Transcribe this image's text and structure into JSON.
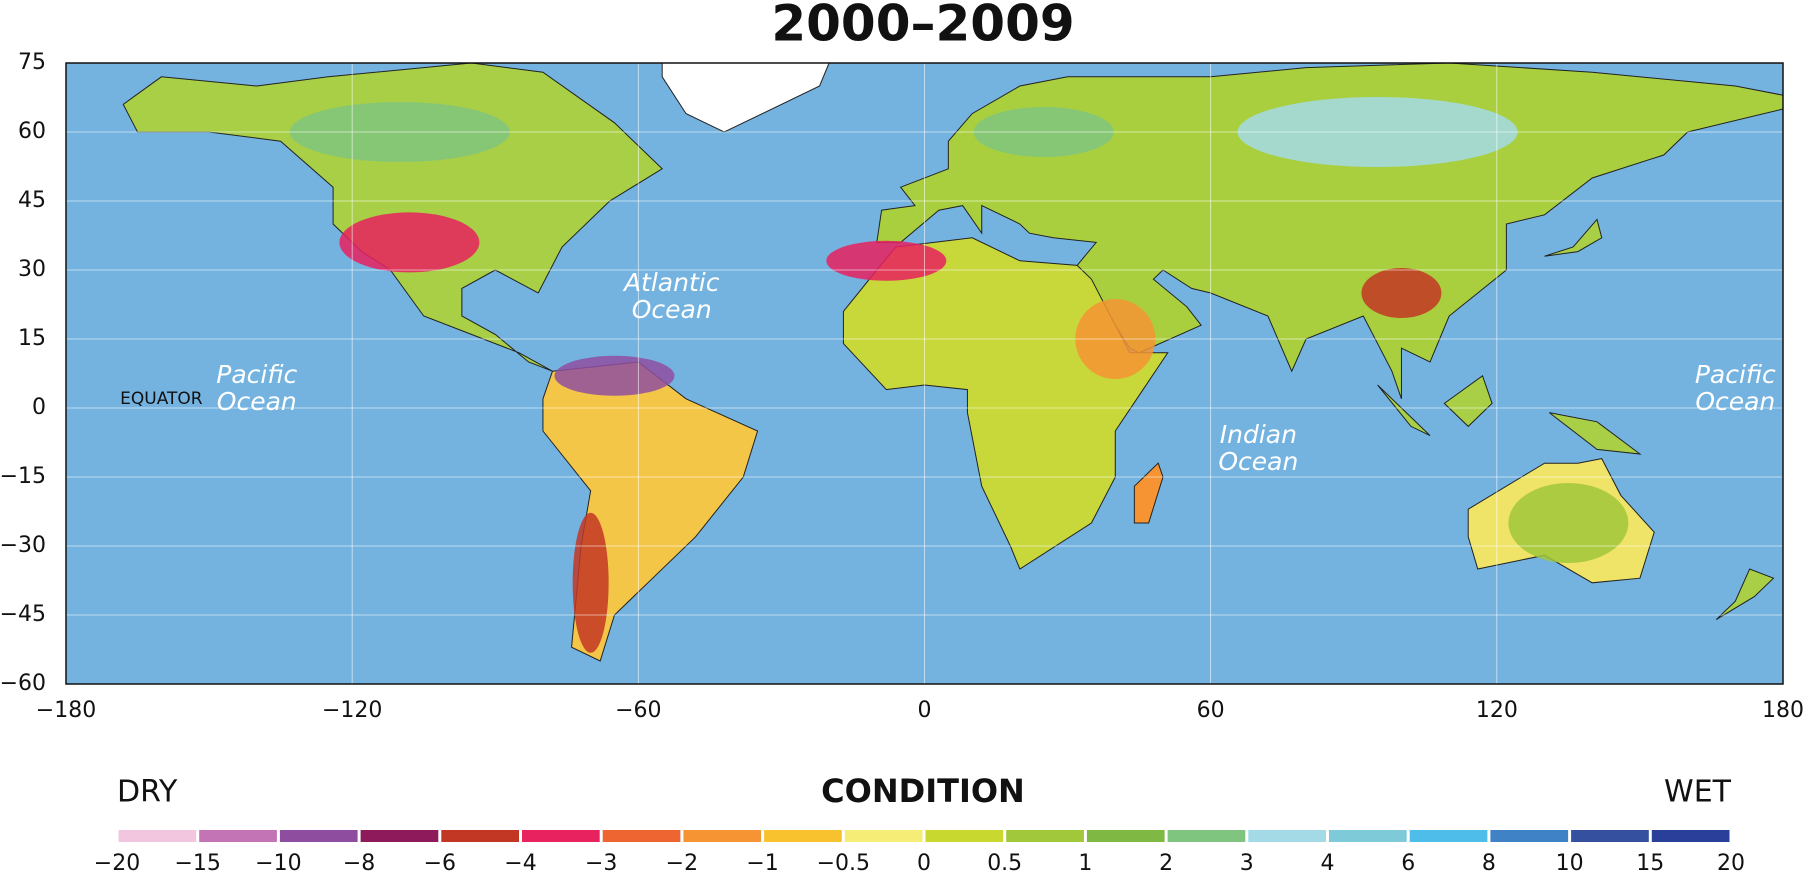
{
  "title": "2000–2009",
  "map": {
    "xlim": [
      -180,
      180
    ],
    "ylim": [
      -60,
      75
    ],
    "xticks": [
      {
        "value": -180,
        "label": "−180"
      },
      {
        "value": -120,
        "label": "−120"
      },
      {
        "value": -60,
        "label": "−60"
      },
      0,
      60,
      120,
      180
    ],
    "yticks": [
      {
        "value": -60,
        "label": "−60"
      },
      {
        "value": -45,
        "label": "−45"
      },
      {
        "value": -30,
        "label": "−30"
      },
      {
        "value": -15,
        "label": "−15"
      },
      0,
      15,
      30,
      45,
      60,
      75
    ],
    "grid": true,
    "labels": [
      [
        "Pacific",
        "Ocean"
      ],
      [
        "Atlantic",
        "Ocean"
      ],
      [
        "Indian",
        "Ocean"
      ],
      [
        "Pacific",
        "Ocean"
      ],
      [
        "EQUATOR"
      ]
    ]
  },
  "legend": {
    "title": "CONDITION",
    "left": "DRY",
    "right": "WET",
    "ticks": [
      {
        "value": -20,
        "label": "−20"
      },
      {
        "value": -15,
        "label": "−15"
      },
      {
        "value": -10,
        "label": "−10"
      },
      {
        "value": -8,
        "label": "−8"
      },
      {
        "value": -6,
        "label": "−6"
      },
      {
        "value": -4,
        "label": "−4"
      },
      {
        "value": -3,
        "label": "−3"
      },
      {
        "value": -2,
        "label": "−2"
      },
      {
        "value": -1,
        "label": "−1"
      },
      {
        "value": -0.5,
        "label": "−0.5"
      },
      0,
      0.5,
      1,
      2,
      3,
      4,
      6,
      8,
      10,
      15,
      20
    ],
    "colors": [
      "#f2c6df",
      "#c374b4",
      "#8f4da0",
      "#8e1a5c",
      "#c23624",
      "#e8215f",
      "#ee6532",
      "#f69433",
      "#f8c22f",
      "#f5ed76",
      "#c8d82e",
      "#a1c73a",
      "#7fb843",
      "#80c57f",
      "#a4dae6",
      "#7fcad9",
      "#4fbde9",
      "#3f82c5",
      "#34509e",
      "#2a3f99"
    ]
  }
}
